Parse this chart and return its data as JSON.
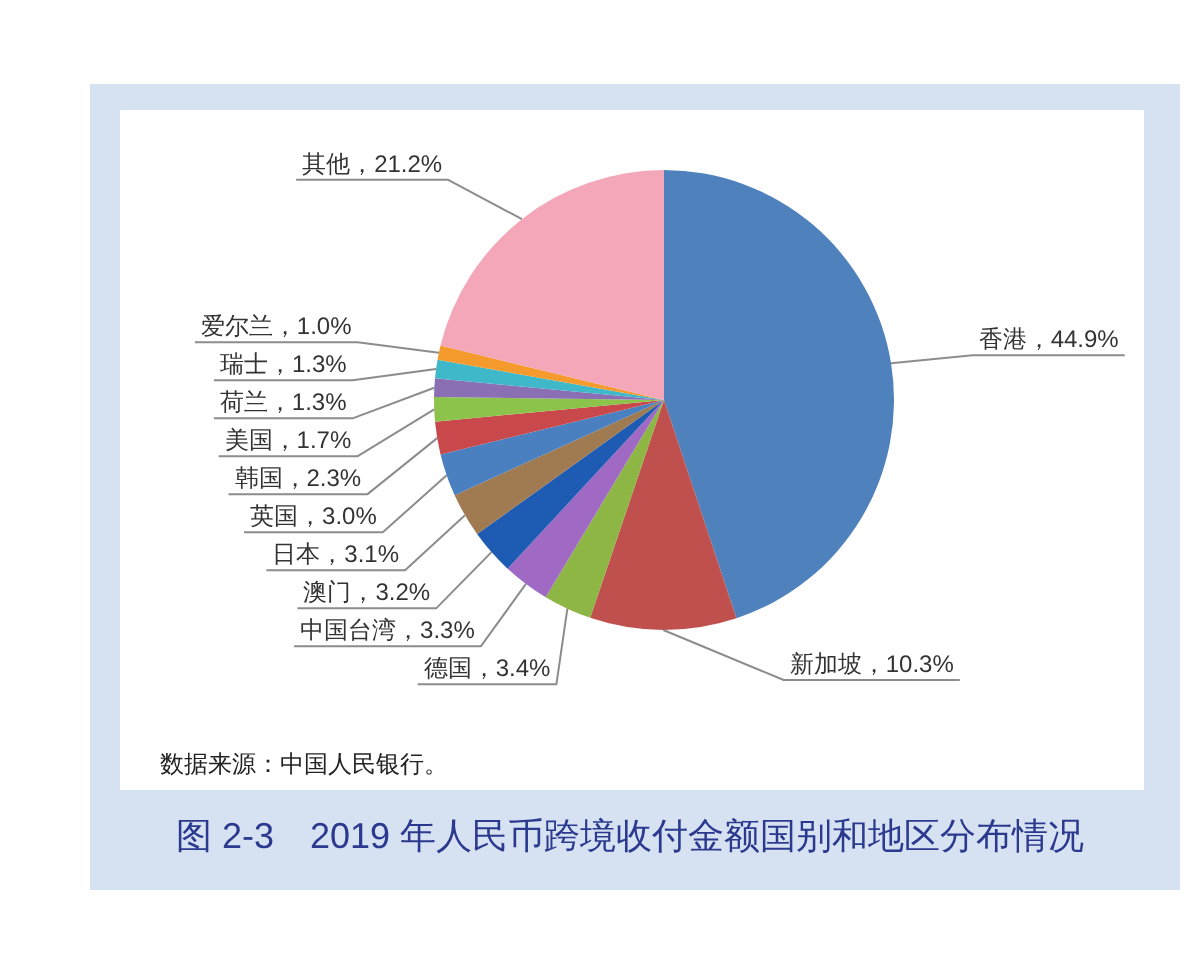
{
  "chart_data": {
    "type": "pie",
    "title": "图 2-3　2019 年人民币跨境收付金额国别和地区分布情况",
    "annotations": [
      "数据来源：中国人民银行。"
    ],
    "categories": [
      "香港",
      "新加坡",
      "德国",
      "中国台湾",
      "澳门",
      "日本",
      "英国",
      "韩国",
      "美国",
      "荷兰",
      "瑞士",
      "爱尔兰",
      "其他"
    ],
    "values": [
      44.9,
      10.3,
      3.4,
      3.3,
      3.2,
      3.1,
      3.0,
      2.3,
      1.7,
      1.3,
      1.3,
      1.0,
      21.2
    ],
    "value_labels": [
      "，44.9%",
      "，10.3%",
      "，3.4%",
      "，3.3%",
      "，3.2%",
      "，3.1%",
      "，3.0%",
      "，2.3%",
      "，1.7%",
      "，1.3%",
      "，1.3%",
      "，1.0%",
      "，21.2%"
    ],
    "colors": [
      "#4f81bd",
      "#c0504d",
      "#8db645",
      "#a06ac4",
      "#1e5cb3",
      "#a07a50",
      "#4a80bf",
      "#c9484b",
      "#8cc34a",
      "#8a6fb5",
      "#3fb9c9",
      "#f59a2c",
      "#f3a7b9"
    ]
  }
}
